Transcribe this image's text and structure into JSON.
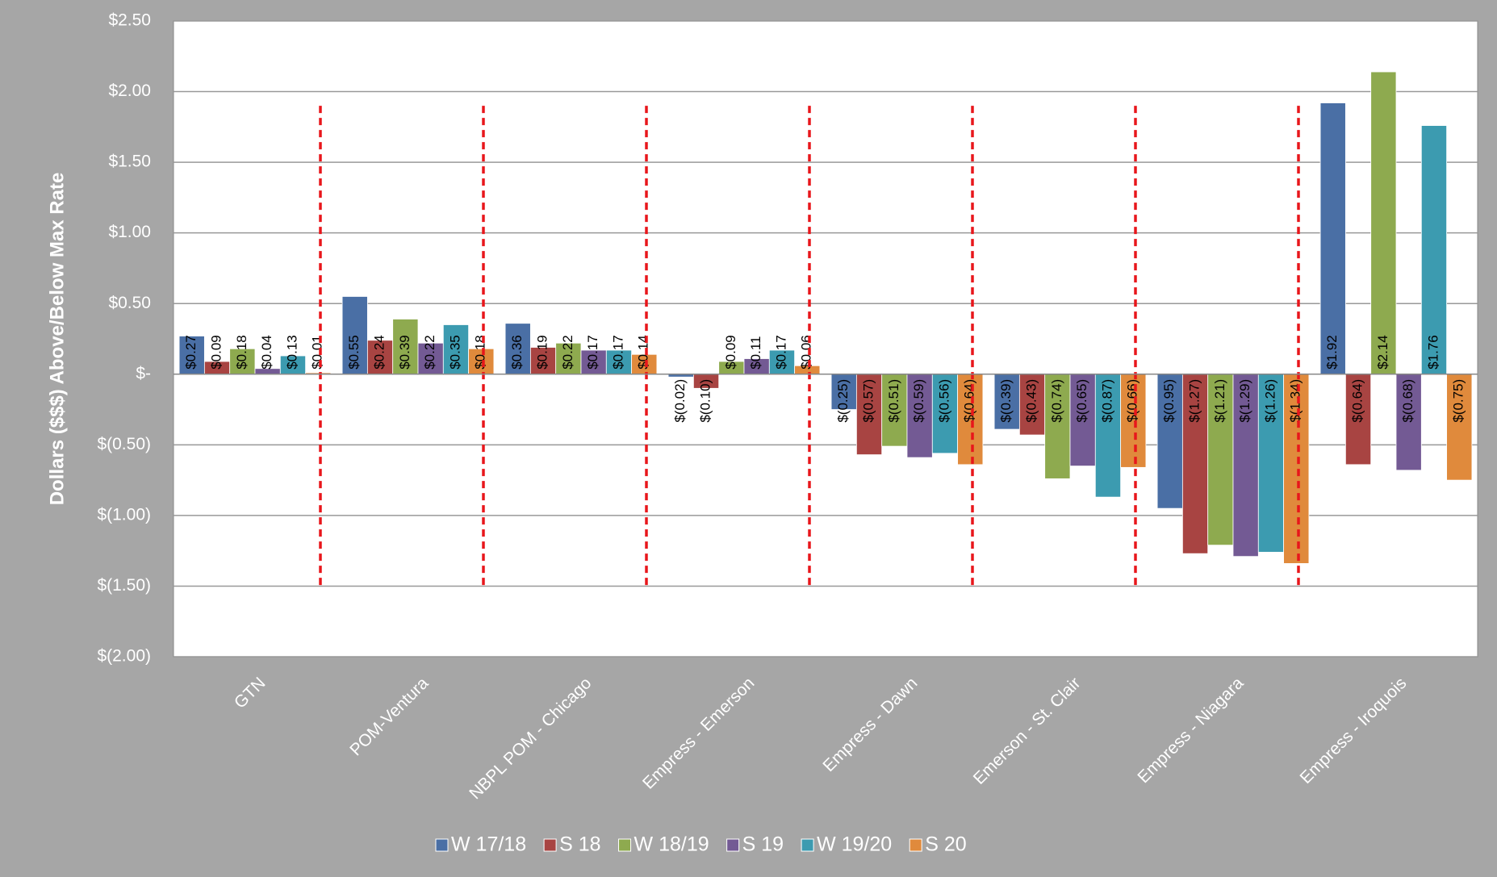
{
  "chart_data": {
    "type": "bar",
    "y_label": "Dollars ($$$) Above/Below Max Rate",
    "categories": [
      "GTN",
      "POM-Ventura",
      "NBPL POM - Chicago",
      "Empress - Emerson",
      "Empress - Dawn",
      "Emerson - St. Clair",
      "Empress - Niagara",
      "Empress - Iroquois"
    ],
    "series": [
      {
        "name": "W 17/18",
        "color": "#4a6fa5",
        "values": [
          0.27,
          0.55,
          0.36,
          -0.02,
          -0.25,
          -0.39,
          -0.95,
          1.92
        ],
        "value_labels": [
          "$0.27",
          "$0.55",
          "$0.36",
          "$(0.02)",
          "$(0.25)",
          "$(0.39)",
          "$(0.95)",
          "$1.92"
        ]
      },
      {
        "name": "S 18",
        "color": "#a84442",
        "values": [
          0.09,
          0.24,
          0.19,
          -0.1,
          -0.57,
          -0.43,
          -1.27,
          -0.64
        ],
        "value_labels": [
          "$0.09",
          "$0.24",
          "$0.19",
          "$(0.10)",
          "$(0.57)",
          "$(0.43)",
          "$(1.27)",
          "$(0.64)"
        ]
      },
      {
        "name": "W 18/19",
        "color": "#8eaa4f",
        "values": [
          0.18,
          0.39,
          0.22,
          0.09,
          -0.51,
          -0.74,
          -1.21,
          2.14
        ],
        "value_labels": [
          "$0.18",
          "$0.39",
          "$0.22",
          "$0.09",
          "$(0.51)",
          "$(0.74)",
          "$(1.21)",
          "$2.14"
        ]
      },
      {
        "name": "S 19",
        "color": "#735a94",
        "values": [
          0.04,
          0.22,
          0.17,
          0.11,
          -0.59,
          -0.65,
          -1.29,
          -0.68
        ],
        "value_labels": [
          "$0.04",
          "$0.22",
          "$0.17",
          "$0.11",
          "$(0.59)",
          "$(0.65)",
          "$(1.29)",
          "$(0.68)"
        ]
      },
      {
        "name": "W 19/20",
        "color": "#3c9bb0",
        "values": [
          0.13,
          0.35,
          0.17,
          0.17,
          -0.56,
          -0.87,
          -1.26,
          1.76
        ],
        "value_labels": [
          "$0.13",
          "$0.35",
          "$0.17",
          "$0.17",
          "$(0.56)",
          "$(0.87)",
          "$(1.26)",
          "$1.76"
        ]
      },
      {
        "name": "S 20",
        "color": "#e08a3c",
        "values": [
          0.01,
          0.18,
          0.14,
          0.06,
          -0.64,
          -0.66,
          -1.34,
          -0.75
        ],
        "value_labels": [
          "$0.01",
          "$0.18",
          "$0.14",
          "$0.06",
          "$(0.64)",
          "$(0.66)",
          "$(1.34)",
          "$(0.75)"
        ]
      }
    ],
    "ylim": [
      -2,
      2.5
    ],
    "yticks": [
      {
        "value": -2,
        "label": "$(2.00)"
      },
      {
        "value": -1.5,
        "label": "$(1.50)"
      },
      {
        "value": -1,
        "label": "$(1.00)"
      },
      {
        "value": -0.5,
        "label": "$(0.50)"
      },
      {
        "value": 0,
        "label": "$-"
      },
      {
        "value": 0.5,
        "label": "$0.50"
      },
      {
        "value": 1,
        "label": "$1.00"
      },
      {
        "value": 1.5,
        "label": "$1.50"
      },
      {
        "value": 2,
        "label": "$2.00"
      },
      {
        "value": 2.5,
        "label": "$2.50"
      }
    ],
    "grid": true,
    "legend": "bottom"
  }
}
